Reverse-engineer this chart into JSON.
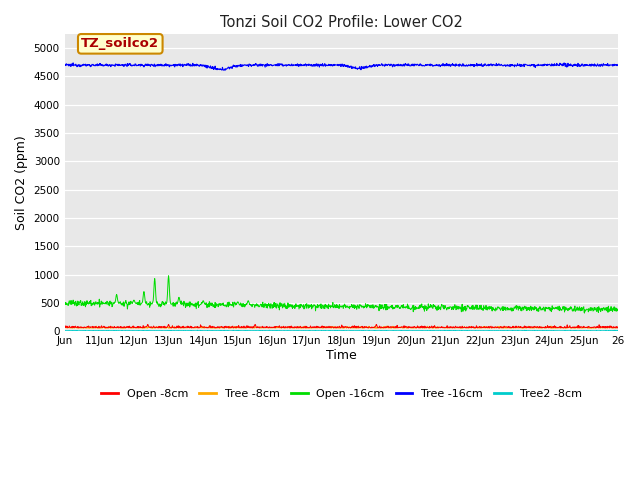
{
  "title": "Tonzi Soil CO2 Profile: Lower CO2",
  "xlabel": "Time",
  "ylabel": "Soil CO2 (ppm)",
  "annotation_text": "TZ_soilco2",
  "annotation_bg": "#ffffcc",
  "annotation_border": "#cc8800",
  "annotation_text_color": "#aa0000",
  "plot_bg": "#e8e8e8",
  "fig_bg": "#ffffff",
  "ylim": [
    0,
    5250
  ],
  "series": {
    "open_8cm": {
      "color": "#ff0000",
      "label": "Open -8cm"
    },
    "tree_8cm": {
      "color": "#ffaa00",
      "label": "Tree -8cm"
    },
    "open_16cm": {
      "color": "#00dd00",
      "label": "Open -16cm"
    },
    "tree_16cm": {
      "color": "#0000ff",
      "label": "Tree -16cm"
    },
    "tree2_8cm": {
      "color": "#00cccc",
      "label": "Tree2 -8cm"
    }
  },
  "n_points": 1440,
  "yticks": [
    0,
    500,
    1000,
    1500,
    2000,
    2500,
    3000,
    3500,
    4000,
    4500,
    5000
  ],
  "xtick_labels": [
    "Jun",
    "11Jun",
    "12Jun",
    "13Jun",
    "14Jun",
    "15Jun",
    "16Jun",
    "17Jun",
    "18Jun",
    "19Jun",
    "20Jun",
    "21Jun",
    "22Jun",
    "23Jun",
    "24Jun",
    "25Jun",
    "26"
  ]
}
